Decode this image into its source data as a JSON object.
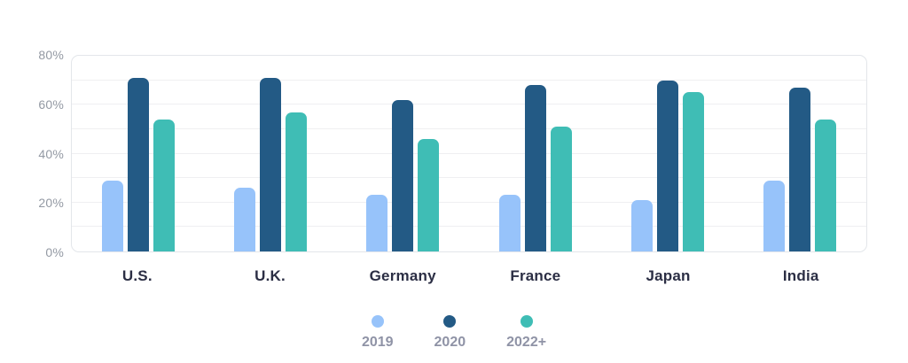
{
  "chart_data": {
    "type": "bar",
    "title": "",
    "xlabel": "",
    "ylabel": "",
    "categories": [
      "U.S.",
      "U.K.",
      "Germany",
      "France",
      "Japan",
      "India"
    ],
    "series": [
      {
        "name": "2019",
        "color": "#97C3FA",
        "values": [
          29,
          26,
          23,
          23,
          21,
          29
        ]
      },
      {
        "name": "2020",
        "color": "#235A85",
        "values": [
          71,
          71,
          62,
          68,
          70,
          67
        ]
      },
      {
        "name": "2022+",
        "color": "#3FBDB5",
        "values": [
          54,
          57,
          46,
          51,
          65,
          54
        ]
      }
    ],
    "ylim": [
      0,
      80
    ],
    "yticks": [
      {
        "label": "0%",
        "value": 0
      },
      {
        "label": "20%",
        "value": 20
      },
      {
        "label": "40%",
        "value": 40
      },
      {
        "label": "60%",
        "value": 60
      },
      {
        "label": "80%",
        "value": 80
      }
    ],
    "grid": true,
    "grid_step": 10,
    "legend_position": "bottom",
    "colors": {
      "background": "#FFFFFF",
      "plot_border": "#E3E6EA",
      "gridline": "#EFEFF1",
      "tick_label": "#9399A3",
      "category_label": "#2B2E44",
      "legend_label": "#8F93A6"
    }
  }
}
